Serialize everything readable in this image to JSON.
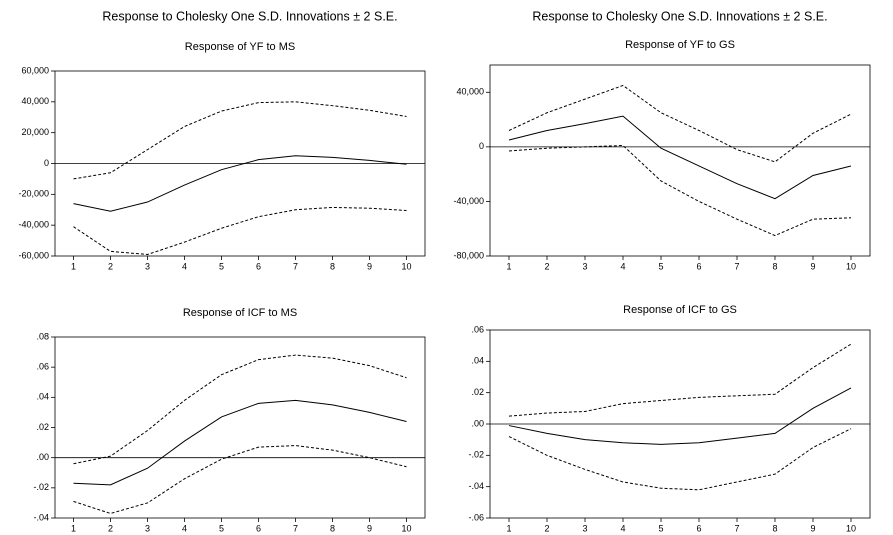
{
  "chart_data": [
    {
      "type": "line",
      "suptitle": "Response to Cholesky One S.D. Innovations ± 2 S.E.",
      "title": "Response of YF to MS",
      "x": [
        1,
        2,
        3,
        4,
        5,
        6,
        7,
        8,
        9,
        10
      ],
      "xlim": [
        0.5,
        10.5
      ],
      "xticks": [
        1,
        2,
        3,
        4,
        5,
        6,
        7,
        8,
        9,
        10
      ],
      "ylim": [
        -60000,
        60000
      ],
      "yticks": [
        {
          "value": -60000,
          "label": "-60,000"
        },
        {
          "value": -40000,
          "label": "-40,000"
        },
        {
          "value": -20000,
          "label": "-20,000"
        },
        0,
        {
          "value": 20000,
          "label": "20,000"
        },
        {
          "value": 40000,
          "label": "40,000"
        },
        {
          "value": 60000,
          "label": "60,000"
        }
      ],
      "series": [
        {
          "color": "#000000",
          "dash": false,
          "values": [
            -26000,
            -31000,
            -25000,
            -14000,
            -4000,
            2500,
            5000,
            4000,
            2000,
            -500
          ]
        },
        {
          "color": "#000000",
          "dash": true,
          "values": [
            -10000,
            -6000,
            9000,
            24000,
            34000,
            39500,
            40000,
            37500,
            34500,
            30500
          ]
        },
        {
          "color": "#000000",
          "dash": true,
          "values": [
            -41000,
            -57000,
            -59000,
            -51000,
            -42000,
            -34500,
            -30000,
            -28500,
            -29000,
            -30500
          ]
        }
      ]
    },
    {
      "type": "line",
      "suptitle": "Response to Cholesky One S.D. Innovations ± 2 S.E.",
      "title": "Response of YF to GS",
      "x": [
        1,
        2,
        3,
        4,
        5,
        6,
        7,
        8,
        9,
        10
      ],
      "xlim": [
        0.5,
        10.5
      ],
      "xticks": [
        1,
        2,
        3,
        4,
        5,
        6,
        7,
        8,
        9,
        10
      ],
      "ylim": [
        -80000,
        60000
      ],
      "yticks": [
        {
          "value": -80000,
          "label": "-80,000"
        },
        {
          "value": -40000,
          "label": "-40,000"
        },
        0,
        {
          "value": 40000,
          "label": "40,000"
        }
      ],
      "series": [
        {
          "color": "#000000",
          "dash": false,
          "values": [
            5000,
            12000,
            17000,
            22500,
            -1000,
            -14000,
            -27000,
            -38000,
            -21000,
            -14000
          ]
        },
        {
          "color": "#000000",
          "dash": true,
          "values": [
            12000,
            25000,
            35000,
            45000,
            25000,
            12000,
            -2000,
            -11000,
            10000,
            24000
          ]
        },
        {
          "color": "#000000",
          "dash": true,
          "values": [
            -3000,
            -1000,
            0,
            1000,
            -25000,
            -40000,
            -53000,
            -65000,
            -53000,
            -52000
          ]
        }
      ]
    },
    {
      "type": "line",
      "title": "Response of ICF to MS",
      "x": [
        1,
        2,
        3,
        4,
        5,
        6,
        7,
        8,
        9,
        10
      ],
      "xlim": [
        0.5,
        10.5
      ],
      "xticks": [
        1,
        2,
        3,
        4,
        5,
        6,
        7,
        8,
        9,
        10
      ],
      "ylim": [
        -0.04,
        0.08
      ],
      "yticks": [
        {
          "value": -0.04,
          "label": "-.04"
        },
        {
          "value": -0.02,
          "label": "-.02"
        },
        {
          "value": 0,
          "label": ".00"
        },
        {
          "value": 0.02,
          "label": ".02"
        },
        {
          "value": 0.04,
          "label": ".04"
        },
        {
          "value": 0.06,
          "label": ".06"
        },
        {
          "value": 0.08,
          "label": ".08"
        }
      ],
      "series": [
        {
          "color": "#000000",
          "dash": false,
          "values": [
            -0.017,
            -0.018,
            -0.007,
            0.011,
            0.027,
            0.036,
            0.038,
            0.035,
            0.03,
            0.024
          ]
        },
        {
          "color": "#000000",
          "dash": true,
          "values": [
            -0.004,
            0.001,
            0.018,
            0.038,
            0.055,
            0.065,
            0.068,
            0.066,
            0.061,
            0.053
          ]
        },
        {
          "color": "#000000",
          "dash": true,
          "values": [
            -0.029,
            -0.037,
            -0.03,
            -0.014,
            -0.001,
            0.007,
            0.008,
            0.005,
            0.0,
            -0.006
          ]
        }
      ]
    },
    {
      "type": "line",
      "title": "Response of ICF to GS",
      "x": [
        1,
        2,
        3,
        4,
        5,
        6,
        7,
        8,
        9,
        10
      ],
      "xlim": [
        0.5,
        10.5
      ],
      "xticks": [
        1,
        2,
        3,
        4,
        5,
        6,
        7,
        8,
        9,
        10
      ],
      "ylim": [
        -0.06,
        0.06
      ],
      "yticks": [
        {
          "value": -0.06,
          "label": "-.06"
        },
        {
          "value": -0.04,
          "label": "-.04"
        },
        {
          "value": -0.02,
          "label": "-.02"
        },
        {
          "value": 0,
          "label": ".00"
        },
        {
          "value": 0.02,
          "label": ".02"
        },
        {
          "value": 0.04,
          "label": ".04"
        },
        {
          "value": 0.06,
          "label": ".06"
        }
      ],
      "series": [
        {
          "color": "#000000",
          "dash": false,
          "values": [
            -0.001,
            -0.006,
            -0.01,
            -0.012,
            -0.013,
            -0.012,
            -0.009,
            -0.006,
            0.01,
            0.023
          ]
        },
        {
          "color": "#000000",
          "dash": true,
          "values": [
            0.005,
            0.007,
            0.008,
            0.013,
            0.015,
            0.017,
            0.018,
            0.019,
            0.036,
            0.051
          ]
        },
        {
          "color": "#000000",
          "dash": true,
          "values": [
            -0.008,
            -0.02,
            -0.029,
            -0.037,
            -0.041,
            -0.042,
            -0.037,
            -0.032,
            -0.015,
            -0.003
          ]
        }
      ]
    }
  ]
}
